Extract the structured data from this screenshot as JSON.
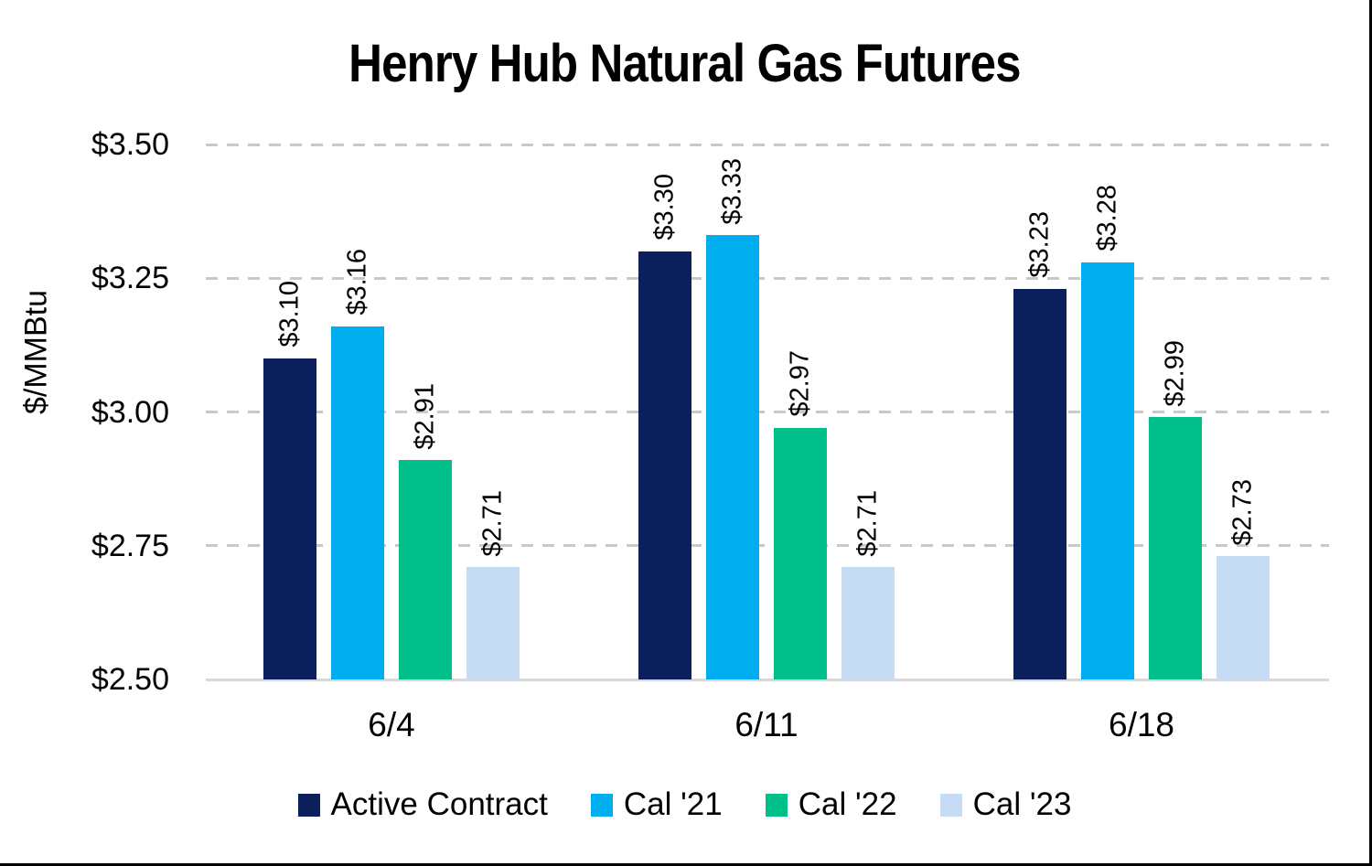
{
  "chart_data": {
    "type": "bar",
    "title": "Henry Hub Natural Gas Futures",
    "xlabel": "",
    "ylabel": "$/MMBtu",
    "categories": [
      "6/4",
      "6/11",
      "6/18"
    ],
    "series": [
      {
        "name": "Active Contract",
        "color": "#0a1f5c",
        "values": [
          3.1,
          3.3,
          3.23
        ],
        "labels": [
          "$3.10",
          "$3.30",
          "$3.23"
        ]
      },
      {
        "name": "Cal '21",
        "color": "#00aeef",
        "values": [
          3.16,
          3.33,
          3.28
        ],
        "labels": [
          "$3.16",
          "$3.33",
          "$3.28"
        ]
      },
      {
        "name": "Cal '22",
        "color": "#00bf8b",
        "values": [
          2.91,
          2.97,
          2.99
        ],
        "labels": [
          "$2.91",
          "$2.97",
          "$2.99"
        ]
      },
      {
        "name": "Cal '23",
        "color": "#c6dcf5",
        "values": [
          2.71,
          2.71,
          2.73
        ],
        "labels": [
          "$2.71",
          "$2.71",
          "$2.73"
        ]
      }
    ],
    "ylim": [
      2.5,
      3.5
    ],
    "yticks": [
      {
        "value": 3.5,
        "label": "$3.50"
      },
      {
        "value": 3.25,
        "label": "$3.25"
      },
      {
        "value": 3.0,
        "label": "$3.00"
      },
      {
        "value": 2.75,
        "label": "$2.75"
      },
      {
        "value": 2.5,
        "label": "$2.50"
      }
    ],
    "grid": "horizontal-dashed",
    "legend_position": "bottom",
    "data_label_rotation": "vertical",
    "colors": {
      "gridline": "#c9c9c9",
      "baseline": "#d8d8d8",
      "text": "#000000",
      "frame_edge": "#000000"
    }
  }
}
